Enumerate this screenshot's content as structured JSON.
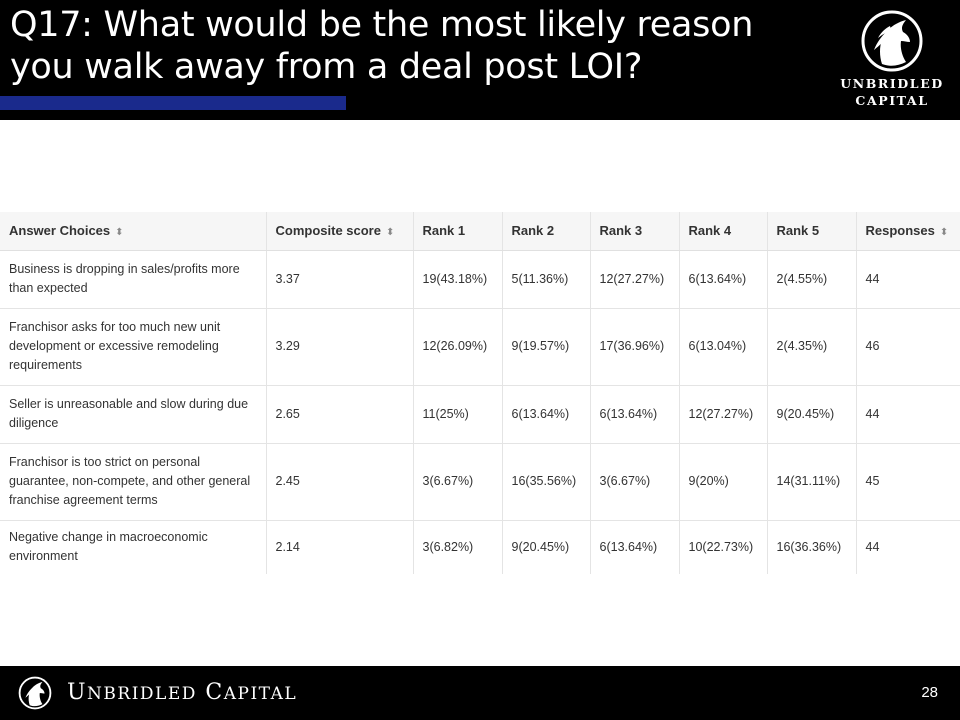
{
  "slide": {
    "title": "Q17: What would be the most likely reason you walk away from a deal post LOI?",
    "page_number": "28"
  },
  "logo": {
    "line1": "UNBRIDLED",
    "line2": "CAPITAL"
  },
  "footer": {
    "brand_u": "U",
    "brand_nbridled": "NBRIDLED",
    "brand_c": "C",
    "brand_apital": "APITAL"
  },
  "table": {
    "headers": [
      "Answer Choices",
      "Composite score",
      "Rank 1",
      "Rank 2",
      "Rank 3",
      "Rank 4",
      "Rank 5",
      "Responses"
    ],
    "sort_icon": "⬍",
    "rows": [
      [
        "Business is dropping in sales/profits more than expected",
        "3.37",
        "19(43.18%)",
        "5(11.36%)",
        "12(27.27%)",
        "6(13.64%)",
        "2(4.55%)",
        "44"
      ],
      [
        "Franchisor asks for too much new unit development or excessive remodeling requirements",
        "3.29",
        "12(26.09%)",
        "9(19.57%)",
        "17(36.96%)",
        "6(13.04%)",
        "2(4.35%)",
        "46"
      ],
      [
        "Seller is unreasonable and slow during due diligence",
        "2.65",
        "11(25%)",
        "6(13.64%)",
        "6(13.64%)",
        "12(27.27%)",
        "9(20.45%)",
        "44"
      ],
      [
        "Franchisor is too strict on personal guarantee, non-compete, and other general franchise agreement terms",
        "2.45",
        "3(6.67%)",
        "16(35.56%)",
        "3(6.67%)",
        "9(20%)",
        "14(31.11%)",
        "45"
      ],
      [
        "Negative change in macroeconomic environment",
        "2.14",
        "3(6.82%)",
        "9(20.45%)",
        "6(13.64%)",
        "10(22.73%)",
        "16(36.36%)",
        "44"
      ]
    ]
  },
  "colors": {
    "header_bg": "#000000",
    "accent_bar": "#1a2a8c"
  }
}
